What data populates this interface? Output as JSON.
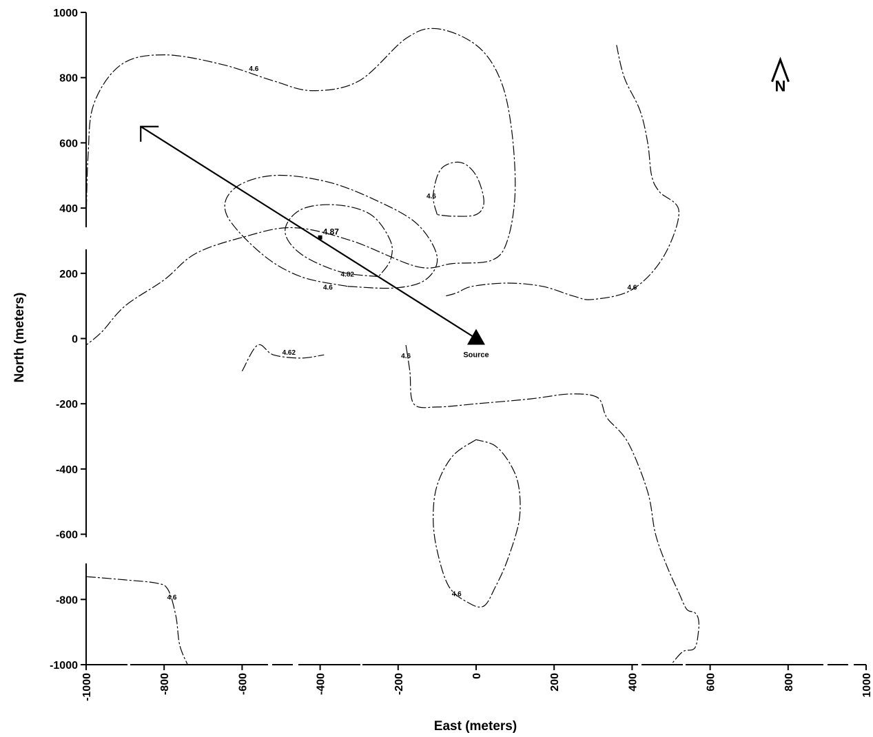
{
  "chart_data": {
    "type": "contour",
    "xlabel": "East (meters)",
    "ylabel": "North (meters)",
    "xlim": [
      -1000,
      1000
    ],
    "ylim": [
      -1000,
      1000
    ],
    "x_ticks": [
      -1000,
      -800,
      -600,
      -400,
      -200,
      0,
      200,
      400,
      600,
      800,
      1000
    ],
    "y_ticks": [
      1000,
      800,
      600,
      400,
      200,
      0,
      -200,
      -400,
      -600,
      -800,
      -1000
    ],
    "x_tick_labels": [
      "-1000",
      "-800",
      "-600",
      "-400",
      "-200",
      "0",
      "200",
      "400",
      "600",
      "800",
      "1000"
    ],
    "y_tick_labels": [
      "1000",
      "800",
      "600",
      "400",
      "200",
      "0",
      "-200",
      "-400",
      "-600",
      "-800",
      "-1000"
    ],
    "source": {
      "x": 0,
      "y": 0,
      "label": "Source"
    },
    "arrow": {
      "from": [
        0,
        0
      ],
      "to": [
        -860,
        650
      ]
    },
    "peak": {
      "x": -400,
      "y": 310,
      "label": "4.87"
    },
    "north_arrow": {
      "label": "N",
      "x": 780,
      "y": 800
    },
    "contours": [
      {
        "name": "outer-west",
        "label": "4.6",
        "label_at": [
          -570,
          820
        ],
        "points": [
          [
            -1000,
            350
          ],
          [
            -995,
            560
          ],
          [
            -980,
            720
          ],
          [
            -910,
            840
          ],
          [
            -800,
            870
          ],
          [
            -650,
            840
          ],
          [
            -520,
            790
          ],
          [
            -420,
            760
          ],
          [
            -300,
            790
          ],
          [
            -180,
            920
          ],
          [
            -100,
            950
          ],
          [
            0,
            900
          ],
          [
            60,
            800
          ],
          [
            90,
            650
          ],
          [
            100,
            450
          ],
          [
            80,
            300
          ],
          [
            40,
            240
          ],
          [
            -60,
            230
          ],
          [
            -150,
            220
          ],
          [
            -320,
            300
          ],
          [
            -470,
            340
          ],
          [
            -600,
            310
          ],
          [
            -720,
            260
          ],
          [
            -800,
            180
          ],
          [
            -900,
            100
          ],
          [
            -960,
            20
          ],
          [
            -1000,
            -20
          ]
        ]
      },
      {
        "name": "mid-ring",
        "label": "4.6",
        "label_at": [
          -380,
          150
        ],
        "points": [
          [
            -330,
            160
          ],
          [
            -450,
            190
          ],
          [
            -550,
            260
          ],
          [
            -640,
            380
          ],
          [
            -620,
            460
          ],
          [
            -520,
            500
          ],
          [
            -380,
            480
          ],
          [
            -250,
            420
          ],
          [
            -150,
            350
          ],
          [
            -100,
            250
          ],
          [
            -130,
            180
          ],
          [
            -210,
            155
          ],
          [
            -330,
            160
          ]
        ]
      },
      {
        "name": "inner-ring",
        "label": "4.82",
        "label_at": [
          -330,
          190
        ],
        "points": [
          [
            -250,
            190
          ],
          [
            -350,
            205
          ],
          [
            -450,
            260
          ],
          [
            -490,
            330
          ],
          [
            -450,
            395
          ],
          [
            -360,
            410
          ],
          [
            -270,
            380
          ],
          [
            -220,
            300
          ],
          [
            -220,
            240
          ],
          [
            -250,
            190
          ]
        ]
      },
      {
        "name": "bump-island",
        "label": "4.6",
        "label_at": [
          -115,
          430
        ],
        "points": [
          [
            -100,
            380
          ],
          [
            -110,
            440
          ],
          [
            -90,
            520
          ],
          [
            -40,
            540
          ],
          [
            0,
            500
          ],
          [
            20,
            420
          ],
          [
            0,
            380
          ],
          [
            -60,
            375
          ],
          [
            -100,
            380
          ]
        ]
      },
      {
        "name": "east-lobe",
        "label": "4.6",
        "label_at": [
          400,
          150
        ],
        "points": [
          [
            360,
            900
          ],
          [
            380,
            800
          ],
          [
            420,
            700
          ],
          [
            440,
            600
          ],
          [
            450,
            500
          ],
          [
            470,
            450
          ],
          [
            520,
            390
          ],
          [
            480,
            250
          ],
          [
            400,
            150
          ],
          [
            300,
            120
          ],
          [
            250,
            130
          ],
          [
            170,
            160
          ],
          [
            80,
            170
          ],
          [
            -10,
            160
          ],
          [
            -50,
            140
          ],
          [
            -80,
            130
          ]
        ]
      },
      {
        "name": "south-east",
        "label": "4.6",
        "label_at": [
          -180,
          -60
        ],
        "points": [
          [
            -180,
            -20
          ],
          [
            -170,
            -100
          ],
          [
            -160,
            -200
          ],
          [
            -100,
            -210
          ],
          [
            0,
            -200
          ],
          [
            140,
            -185
          ],
          [
            240,
            -170
          ],
          [
            310,
            -180
          ],
          [
            330,
            -230
          ],
          [
            340,
            -250
          ],
          [
            390,
            -320
          ],
          [
            440,
            -470
          ],
          [
            460,
            -600
          ],
          [
            490,
            -700
          ],
          [
            520,
            -780
          ],
          [
            540,
            -830
          ],
          [
            560,
            -840
          ],
          [
            570,
            -860
          ],
          [
            570,
            -900
          ],
          [
            560,
            -950
          ],
          [
            530,
            -960
          ],
          [
            500,
            -1000
          ]
        ]
      },
      {
        "name": "south-ellipse",
        "label": "4.6",
        "label_at": [
          -50,
          -790
        ],
        "points": [
          [
            0,
            -310
          ],
          [
            -60,
            -360
          ],
          [
            -100,
            -450
          ],
          [
            -110,
            -550
          ],
          [
            -100,
            -650
          ],
          [
            -70,
            -760
          ],
          [
            -20,
            -810
          ],
          [
            20,
            -820
          ],
          [
            50,
            -760
          ],
          [
            80,
            -680
          ],
          [
            110,
            -560
          ],
          [
            110,
            -460
          ],
          [
            90,
            -390
          ],
          [
            50,
            -330
          ],
          [
            0,
            -310
          ]
        ]
      },
      {
        "name": "west-low",
        "label": "4.62",
        "label_at": [
          -480,
          -50
        ],
        "points": [
          [
            -600,
            -100
          ],
          [
            -560,
            -20
          ],
          [
            -520,
            -50
          ],
          [
            -450,
            -60
          ],
          [
            -390,
            -50
          ]
        ]
      },
      {
        "name": "south-west",
        "label": "4.6",
        "label_at": [
          -780,
          -800
        ],
        "points": [
          [
            -1000,
            -730
          ],
          [
            -900,
            -740
          ],
          [
            -820,
            -750
          ],
          [
            -790,
            -770
          ],
          [
            -770,
            -850
          ],
          [
            -760,
            -940
          ],
          [
            -740,
            -1000
          ]
        ]
      }
    ]
  }
}
